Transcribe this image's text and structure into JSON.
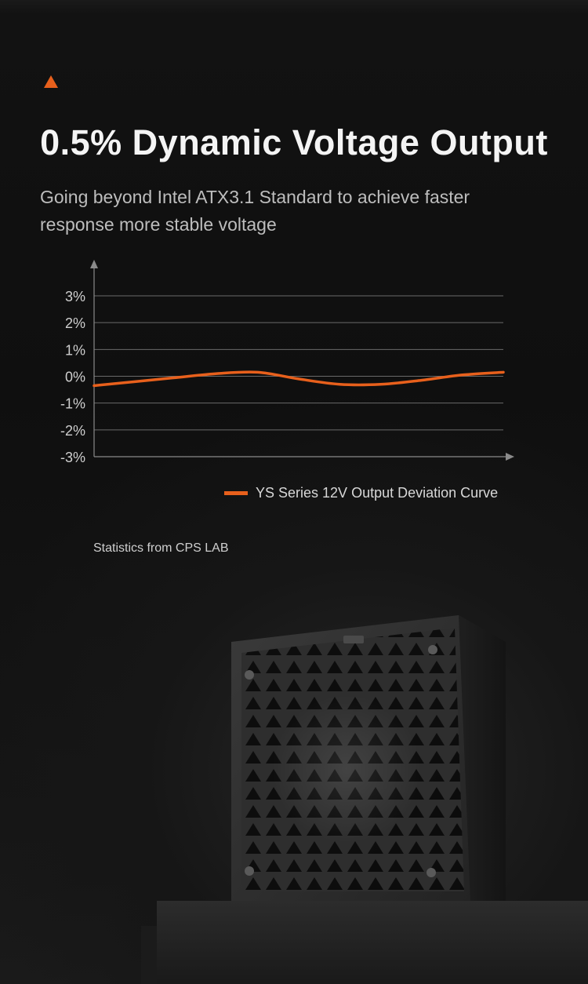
{
  "headline": "0.5% Dynamic Voltage Output",
  "subtitle": "Going beyond Intel ATX3.1 Standard to achieve faster response more stable voltage",
  "source_note": "Statistics from CPS LAB",
  "colors": {
    "accent": "#e8601c",
    "background": "#0e0e0e",
    "grid": "#6a6a6a"
  },
  "icons": {
    "accent_marker": "triangle-icon"
  },
  "chart_data": {
    "type": "line",
    "title": "",
    "xlabel": "",
    "ylabel": "",
    "ylim": [
      -3,
      3
    ],
    "y_ticks": [
      3,
      2,
      1,
      0,
      -1,
      -2,
      -3
    ],
    "y_tick_labels": [
      "3%",
      "2%",
      "1%",
      "0%",
      "-1%",
      "-2%",
      "-3%"
    ],
    "grid": true,
    "legend_position": "bottom-right",
    "series": [
      {
        "name": "YS Series 12V Output Deviation Curve",
        "color": "#e8601c",
        "x": [
          0,
          0.1,
          0.2,
          0.3,
          0.4,
          0.5,
          0.6,
          0.7,
          0.8,
          0.9,
          1.0
        ],
        "values": [
          -0.35,
          -0.2,
          -0.05,
          0.1,
          0.15,
          -0.1,
          -0.3,
          -0.3,
          -0.15,
          0.05,
          0.15
        ]
      }
    ]
  }
}
